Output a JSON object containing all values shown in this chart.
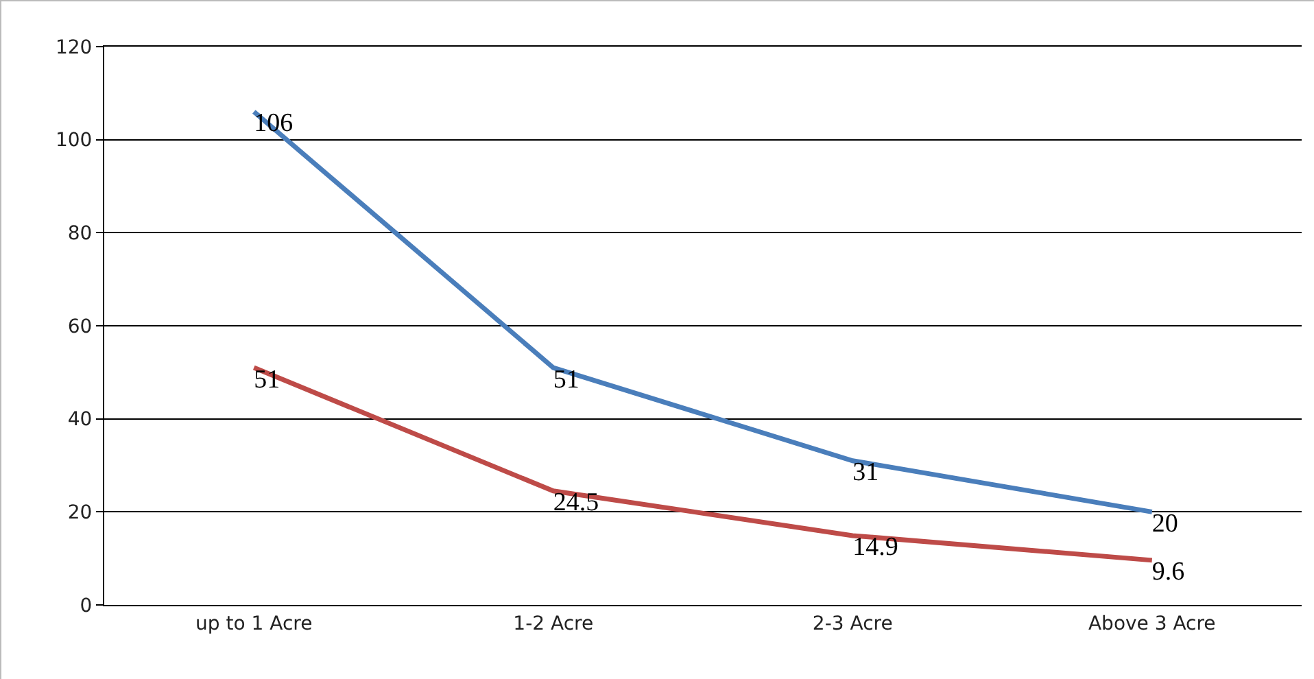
{
  "chart_data": {
    "type": "line",
    "categories": [
      "up to 1 Acre",
      "1-2 Acre",
      "2-3 Acre",
      "Above 3 Acre"
    ],
    "series": [
      {
        "color": "#4a7ebb",
        "values": [
          106,
          51,
          31,
          20
        ]
      },
      {
        "color": "#be4b48",
        "values": [
          51,
          24.5,
          14.9,
          9.6
        ]
      }
    ],
    "ylim": [
      0,
      120
    ],
    "yticks": [
      0,
      20,
      40,
      60,
      80,
      100,
      120
    ],
    "grid": "y",
    "marker": "none",
    "line_style": "solid",
    "data_labels": true
  }
}
